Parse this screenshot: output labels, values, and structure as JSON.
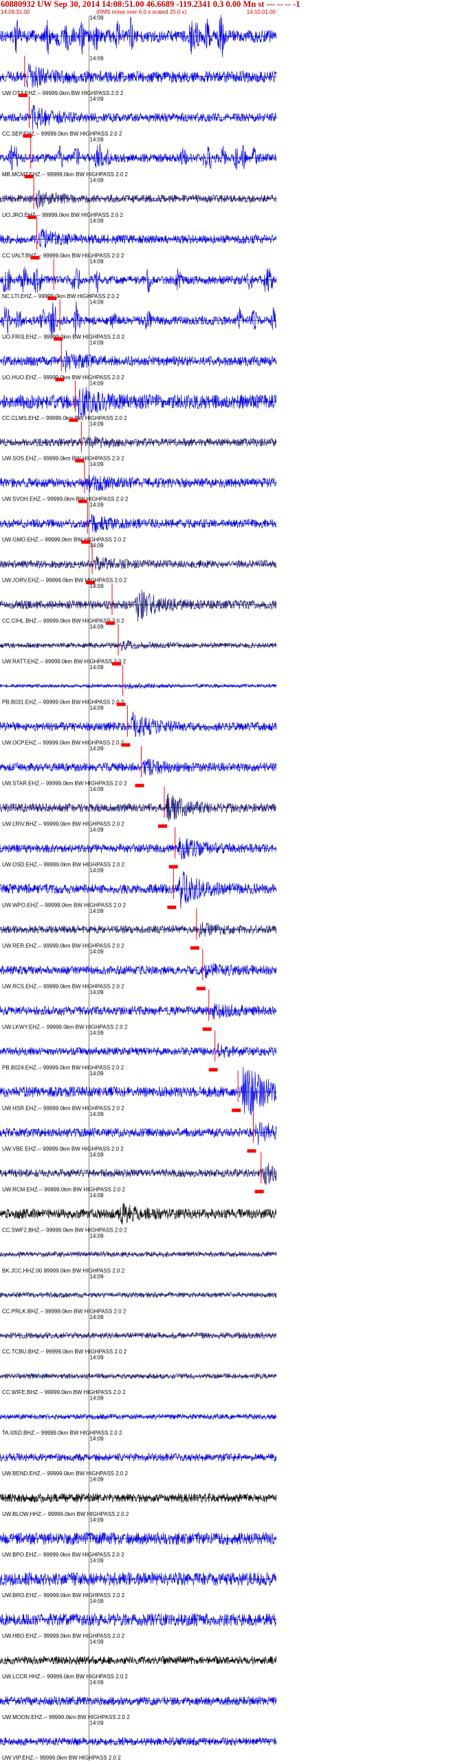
{
  "header": {
    "title": "60880932 UW Sep 30, 2014 14:08:51.00   46.6689 -119.2341  0.3 0.00 Mn st --- -- --  -1",
    "start_time": "14:08:31.00",
    "note": "(RMS noise over 6.0 s scaled 20.0 x)",
    "end_time": "14:10:01.00"
  },
  "chart_data": {
    "type": "line",
    "title": "60880932 UW Sep 30, 2014 14:08:51.00   46.6689 -119.2341  0.3 0.00 Mn st --- -- --  -1",
    "xlabel": "",
    "ylabel": "",
    "x_start": "14:08:31.00",
    "x_end": "14:10:01.00",
    "xlim_seconds": [
      0,
      90
    ],
    "minute_mark": "14:09",
    "minute_mark_seconds": 29,
    "pick_color": "#ff0000",
    "colors": {
      "blue": "#0000ee",
      "navy": "#1a1a7a",
      "black": "#000000"
    },
    "traces": [
      {
        "label": "",
        "amp": 0.7,
        "color": "blue",
        "style": "burst",
        "pick": null
      },
      {
        "label": "UW.OT3.EHZ.-- 99999.0km BW  HIGHPASS  2.0  2",
        "amp": 0.65,
        "color": "blue",
        "style": "quake",
        "pick": 8.0,
        "event": 8.5,
        "eamp": 1.6
      },
      {
        "label": "CC.SEP.EHZ.-- 99999.0km BW  HIGHPASS  2.0  2",
        "amp": 0.5,
        "color": "blue",
        "style": "quake",
        "pick": 9.5,
        "event": 10.0,
        "eamp": 2.2
      },
      {
        "label": "MB.MCMT.EHZ.-- 99999.0km BW  HIGHPASS  2.0  2",
        "amp": 0.5,
        "color": "blue",
        "style": "burst",
        "pick": 10.0
      },
      {
        "label": "UO.JRO.EHZ.-- 99999.0km BW  HIGHPASS  2.0  2",
        "amp": 0.45,
        "color": "navy",
        "style": "quake",
        "pick": 11.0,
        "event": 11.5,
        "eamp": 1.8
      },
      {
        "label": "CC.VALT.BHZ.-- 99999.0km BW  HIGHPASS  2.0  2",
        "amp": 0.5,
        "color": "blue",
        "style": "quake",
        "pick": 12.0,
        "event": 12.5,
        "eamp": 2.0
      },
      {
        "label": "NC.LTI.EHZ.-- 99999.0km BW  HIGHPASS  2.0  2",
        "amp": 0.5,
        "color": "blue",
        "style": "burst",
        "pick": 17.5
      },
      {
        "label": "UO.FRIS.EHZ.-- 99999.0km BW  HIGHPASS  2.0  2",
        "amp": 0.5,
        "color": "blue",
        "style": "burst",
        "pick": 19.5
      },
      {
        "label": "UO.HUO.EHZ.-- 99999.0km BW  HIGHPASS  2.0  2",
        "amp": 0.55,
        "color": "blue",
        "style": "quake",
        "pick": 20.0,
        "event": 20.5,
        "eamp": 1.5
      },
      {
        "label": "CC.CLMS.EHZ.-- 99999.0km BW  HIGHPASS  2.0  2",
        "amp": 0.8,
        "color": "blue",
        "style": "quake",
        "pick": 24.5,
        "event": 25.0,
        "eamp": 1.8
      },
      {
        "label": "UW.SOS.EHZ.-- 99999.0km BW  HIGHPASS  2.0  2",
        "amp": 0.45,
        "color": "navy",
        "style": "quake",
        "pick": 26.5,
        "event": 27.0,
        "eamp": 1.4
      },
      {
        "label": "UW.SVOH.EHZ.-- 99999.0km BW  HIGHPASS  2.0  2",
        "amp": 0.55,
        "color": "blue",
        "style": "quake",
        "pick": 27.5,
        "event": 28.0,
        "eamp": 1.5
      },
      {
        "label": "UW.GMO.EHZ.-- 99999.0km BW  HIGHPASS  2.0  2",
        "amp": 0.5,
        "color": "blue",
        "style": "quake",
        "pick": 28.5,
        "event": 29.0,
        "eamp": 1.6
      },
      {
        "label": "UW.JORV.EHZ.-- 99999.0km BW  HIGHPASS  2.0  2",
        "amp": 0.45,
        "color": "navy",
        "style": "quake",
        "pick": 30.0,
        "event": 30.5,
        "eamp": 1.3
      },
      {
        "label": "CC.CIHL.BHZ.-- 99999.0km BW  HIGHPASS  2.0  2",
        "amp": 0.5,
        "color": "navy",
        "style": "quake",
        "pick": 36.5,
        "event": 44.0,
        "eamp": 3.5
      },
      {
        "label": "UW.RATT.EHZ.-- 99999.0km BW  HIGHPASS  2.0  2",
        "amp": 0.3,
        "color": "navy",
        "style": "quake",
        "pick": 38.5,
        "event": 39.0,
        "eamp": 1.2
      },
      {
        "label": "PB.B031.EHZ.-- 99999.0km BW  HIGHPASS  2.0  2",
        "amp": 0.2,
        "color": "blue",
        "style": "quake",
        "pick": 40.0,
        "event": 40.5,
        "eamp": 1.0
      },
      {
        "label": "UW.OCP.EHZ.-- 99999.0km BW  HIGHPASS  2.0  2",
        "amp": 0.5,
        "color": "blue",
        "style": "quake",
        "pick": 41.5,
        "event": 42.5,
        "eamp": 2.8
      },
      {
        "label": "UW.STAR.EHZ.-- 99999.0km BW  HIGHPASS  2.0  2",
        "amp": 0.5,
        "color": "blue",
        "style": "quake",
        "pick": 46.0,
        "event": 46.5,
        "eamp": 1.4
      },
      {
        "label": "UW.LRIV.BHZ.-- 99999.0km BW  HIGHPASS  2.0  2",
        "amp": 0.5,
        "color": "navy",
        "style": "quake",
        "pick": 53.5,
        "event": 54.0,
        "eamp": 2.8
      },
      {
        "label": "UW.OSD.EHZ.-- 99999.0km BW  HIGHPASS  2.0  2",
        "amp": 0.5,
        "color": "blue",
        "style": "quake",
        "pick": 57.0,
        "event": 58.0,
        "eamp": 2.5
      },
      {
        "label": "UW.WPO.EHZ.-- 99999.0km BW  HIGHPASS  2.0  2",
        "amp": 0.55,
        "color": "blue",
        "style": "quake",
        "pick": 56.5,
        "event": 58.0,
        "eamp": 3.5
      },
      {
        "label": "UW.RER.EHZ.-- 99999.0km BW  HIGHPASS  2.0  2",
        "amp": 0.45,
        "color": "navy",
        "style": "quake",
        "pick": 64.0,
        "event": 64.5,
        "eamp": 1.2
      },
      {
        "label": "UW.RCS.EHZ.-- 99999.0km BW  HIGHPASS  2.0  2",
        "amp": 0.5,
        "color": "blue",
        "style": "quake",
        "pick": 66.0,
        "event": 66.5,
        "eamp": 1.3
      },
      {
        "label": "UW.LKWY.EHZ.-- 99999.0km BW  HIGHPASS  2.0  2",
        "amp": 0.5,
        "color": "blue",
        "style": "quake",
        "pick": 68.0,
        "event": 68.5,
        "eamp": 1.3
      },
      {
        "label": "PB.B024.EHZ.-- 99999.0km BW  HIGHPASS  2.0  2",
        "amp": 0.45,
        "color": "blue",
        "style": "quake",
        "pick": 70.0,
        "event": 70.5,
        "eamp": 1.2
      },
      {
        "label": "UW.HSR.EHZ.-- 99999.0km BW  HIGHPASS  2.0  2",
        "amp": 0.6,
        "color": "blue",
        "style": "clip",
        "pick": 77.5,
        "event": 78.5,
        "eamp": 6.0
      },
      {
        "label": "UW.VBE.EHZ.-- 99999.0km BW  HIGHPASS  2.0  2",
        "amp": 0.5,
        "color": "blue",
        "style": "quake",
        "pick": 82.5,
        "event": 83.0,
        "eamp": 2.6
      },
      {
        "label": "UW.RCM.EHZ.-- 99999.0km BW  HIGHPASS  2.0  2",
        "amp": 0.45,
        "color": "navy",
        "style": "quake",
        "pick": 85.0,
        "event": 85.5,
        "eamp": 2.4
      },
      {
        "label": "CC.SWF2.BHZ.-- 99999.0km BW  HIGHPASS  2.0  2",
        "amp": 0.55,
        "color": "black",
        "style": "quake",
        "pick": null,
        "event": 38.5,
        "eamp": 2.0
      },
      {
        "label": "BK.JCC.HHZ.00 99999.0km BW  HIGHPASS  2.0  2",
        "amp": 0.3,
        "color": "navy",
        "style": "noise",
        "pick": null
      },
      {
        "label": "CC.PRLK.BHZ.-- 99999.0km BW  HIGHPASS  2.0  2",
        "amp": 0.3,
        "color": "navy",
        "style": "noise",
        "pick": null
      },
      {
        "label": "CC.TCBU.BHZ.-- 99999.0km BW  HIGHPASS  2.0  2",
        "amp": 0.35,
        "color": "navy",
        "style": "noise",
        "pick": null
      },
      {
        "label": "CC.WIFE.BHZ.-- 99999.0km BW  HIGHPASS  2.0  2",
        "amp": 0.3,
        "color": "navy",
        "style": "noise",
        "pick": null
      },
      {
        "label": "TA.I05D.BHZ.-- 99999.0km BW  HIGHPASS  2.0  2",
        "amp": 0.3,
        "color": "blue",
        "style": "noise",
        "pick": null
      },
      {
        "label": "UW.BEND.EHZ.-- 99999.0km BW  HIGHPASS  2.0  2",
        "amp": 0.45,
        "color": "blue",
        "style": "noise",
        "pick": null
      },
      {
        "label": "UW.BLOW.HHZ.-- 99999.0km BW  HIGHPASS  2.0  2",
        "amp": 0.5,
        "color": "black",
        "style": "noise",
        "pick": null
      },
      {
        "label": "UW.BPO.EHZ.-- 99999.0km BW  HIGHPASS  2.0  2",
        "amp": 0.7,
        "color": "blue",
        "style": "noise",
        "pick": null
      },
      {
        "label": "UW.BRO.EHZ.-- 99999.0km BW  HIGHPASS  2.0  2",
        "amp": 0.75,
        "color": "blue",
        "style": "noise",
        "pick": null
      },
      {
        "label": "UW.HBO.EHZ.-- 99999.0km BW  HIGHPASS  2.0  2",
        "amp": 0.7,
        "color": "blue",
        "style": "noise",
        "pick": null
      },
      {
        "label": "UW.LCCR.HHZ.-- 99999.0km BW  HIGHPASS  2.0  2",
        "amp": 0.45,
        "color": "black",
        "style": "noise",
        "pick": null
      },
      {
        "label": "UW.MOON.EHZ.-- 99999.0km BW  HIGHPASS  2.0  2",
        "amp": 0.5,
        "color": "blue",
        "style": "noise",
        "pick": null
      },
      {
        "label": "UW.VIP.EHZ.-- 99999.0km BW  HIGHPASS  2.0  2",
        "amp": 0.45,
        "color": "blue",
        "style": "noise",
        "pick": null
      }
    ]
  }
}
